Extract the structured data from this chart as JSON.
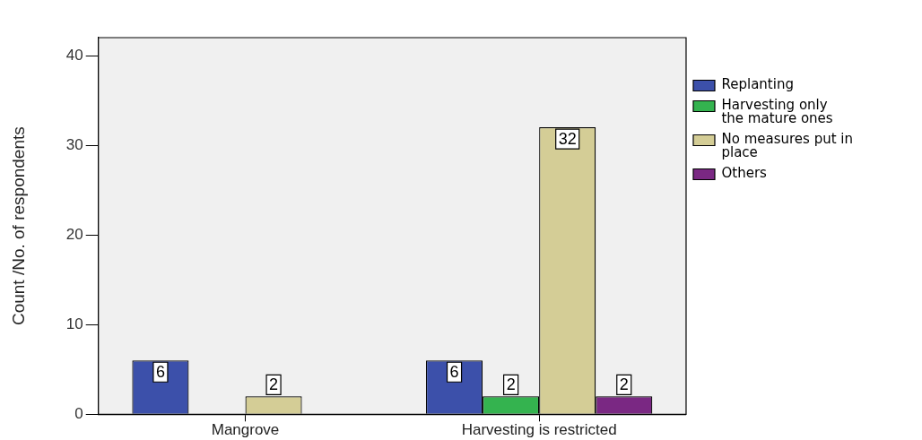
{
  "chart_data": {
    "type": "bar",
    "categories": [
      "Mangrove",
      "Harvesting is restricted"
    ],
    "series": [
      {
        "name": "Replanting",
        "color": "#3c50aa",
        "values": [
          6,
          6
        ]
      },
      {
        "name": "Harvesting only the mature ones",
        "color": "#34b34f",
        "values": [
          null,
          2
        ]
      },
      {
        "name": "No measures put in place",
        "color": "#d4cd96",
        "values": [
          2,
          32
        ]
      },
      {
        "name": "Others",
        "color": "#7a2883",
        "values": [
          null,
          2
        ]
      }
    ],
    "ylabel": "Count /No. of respondents",
    "ylim": [
      0,
      42
    ],
    "yticks": [
      0,
      10,
      20,
      30,
      40
    ],
    "legend": "top right",
    "data_labels": true
  }
}
